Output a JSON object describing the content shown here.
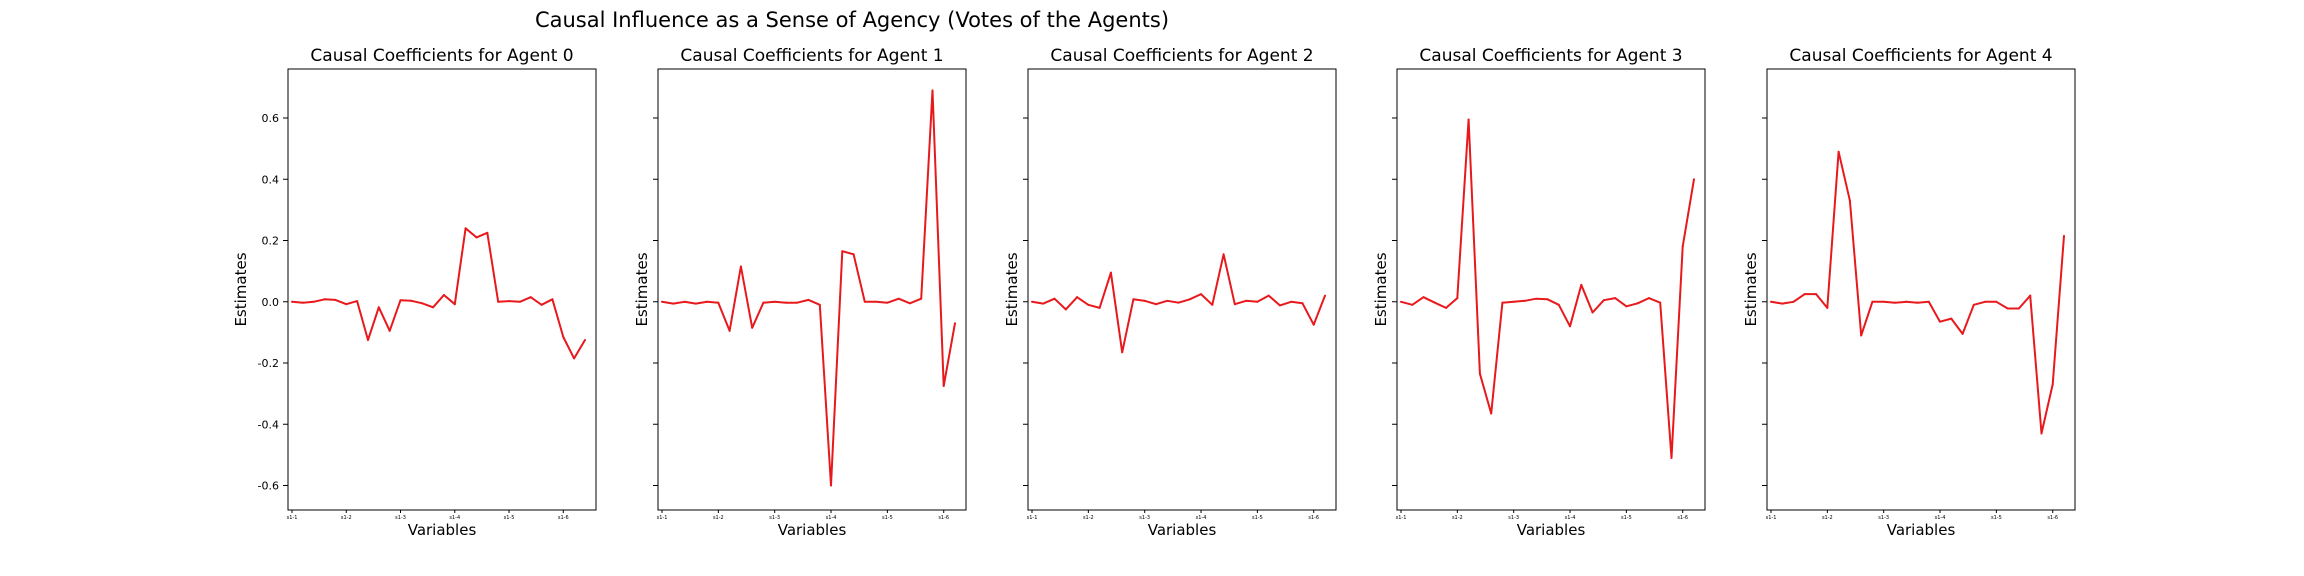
{
  "figure_title": "Causal Influence as a Sense of Agency (Votes of the Agents)",
  "colors": {
    "line": "#e8191c"
  },
  "chart_data": [
    {
      "type": "line",
      "title": "Causal Coefficients for Agent 0",
      "xlabel": "Variables",
      "ylabel": "Estimates",
      "ylim": [
        -0.68,
        0.76
      ],
      "yticks": [
        "-0.6",
        "-0.4",
        "-0.2",
        "0.0",
        "0.2",
        "0.4",
        "0.6"
      ],
      "xtick_labels": [
        "s1-1",
        "s1-2",
        "s1-3",
        "s1-4",
        "s1-5",
        "s1-6"
      ],
      "values": [
        0.0,
        -0.003,
        0.0,
        0.008,
        0.006,
        -0.008,
        0.002,
        -0.125,
        -0.018,
        -0.095,
        0.005,
        0.003,
        -0.005,
        -0.018,
        0.022,
        -0.008,
        0.24,
        0.21,
        0.225,
        0.0,
        0.002,
        0.0,
        0.015,
        -0.01,
        0.008,
        -0.115,
        -0.185,
        -0.125
      ]
    },
    {
      "type": "line",
      "title": "Causal Coefficients for Agent 1",
      "xlabel": "Variables",
      "ylabel": "Estimates",
      "ylim": [
        -0.68,
        0.76
      ],
      "yticks": [
        "-0.6",
        "-0.4",
        "-0.2",
        "0.0",
        "0.2",
        "0.4",
        "0.6"
      ],
      "xtick_labels": [
        "s1-1",
        "s1-2",
        "s1-3",
        "s1-4",
        "s1-5",
        "s1-6"
      ],
      "values": [
        0.0,
        -0.006,
        0.0,
        -0.006,
        0.0,
        -0.003,
        -0.095,
        0.115,
        -0.085,
        -0.003,
        0.0,
        -0.003,
        -0.003,
        0.006,
        -0.01,
        -0.6,
        0.165,
        0.155,
        0.0,
        0.0,
        -0.003,
        0.01,
        -0.005,
        0.01,
        0.69,
        -0.275,
        -0.07
      ]
    },
    {
      "type": "line",
      "title": "Causal Coefficients for Agent 2",
      "xlabel": "Variables",
      "ylabel": "Estimates",
      "ylim": [
        -0.68,
        0.76
      ],
      "yticks": [
        "-0.6",
        "-0.4",
        "-0.2",
        "0.0",
        "0.2",
        "0.4",
        "0.6"
      ],
      "xtick_labels": [
        "s1-1",
        "s1-2",
        "s1-3",
        "s1-4",
        "s1-5",
        "s1-6"
      ],
      "values": [
        0.0,
        -0.006,
        0.01,
        -0.025,
        0.015,
        -0.01,
        -0.02,
        0.095,
        -0.165,
        0.008,
        0.003,
        -0.008,
        0.003,
        -0.003,
        0.008,
        0.025,
        -0.01,
        0.155,
        -0.008,
        0.003,
        0.0,
        0.02,
        -0.012,
        0.0,
        -0.005,
        -0.075,
        0.02
      ]
    },
    {
      "type": "line",
      "title": "Causal Coefficients for Agent 3",
      "xlabel": "Variables",
      "ylabel": "Estimates",
      "ylim": [
        -0.68,
        0.76
      ],
      "yticks": [
        "-0.6",
        "-0.4",
        "-0.2",
        "0.0",
        "0.2",
        "0.4",
        "0.6"
      ],
      "xtick_labels": [
        "s1-1",
        "s1-2",
        "s1-3",
        "s1-4",
        "s1-5",
        "s1-6"
      ],
      "values": [
        0.0,
        -0.01,
        0.015,
        -0.003,
        -0.02,
        0.012,
        0.595,
        -0.235,
        -0.365,
        -0.003,
        0.0,
        0.003,
        0.01,
        0.008,
        -0.01,
        -0.08,
        0.055,
        -0.035,
        0.005,
        0.012,
        -0.015,
        -0.005,
        0.012,
        -0.003,
        -0.51,
        0.18,
        0.4
      ]
    },
    {
      "type": "line",
      "title": "Causal Coefficients for Agent 4",
      "xlabel": "Variables",
      "ylabel": "Estimates",
      "ylim": [
        -0.68,
        0.76
      ],
      "yticks": [
        "-0.6",
        "-0.4",
        "-0.2",
        "0.0",
        "0.2",
        "0.4",
        "0.6"
      ],
      "xtick_labels": [
        "s1-1",
        "s1-2",
        "s1-3",
        "s1-4",
        "s1-5",
        "s1-6"
      ],
      "values": [
        0.0,
        -0.006,
        0.0,
        0.025,
        0.025,
        -0.02,
        0.49,
        0.33,
        -0.11,
        0.0,
        0.0,
        -0.003,
        0.0,
        -0.003,
        0.0,
        -0.065,
        -0.055,
        -0.105,
        -0.01,
        0.0,
        0.0,
        -0.022,
        -0.022,
        0.02,
        -0.43,
        -0.27,
        0.215
      ]
    }
  ]
}
